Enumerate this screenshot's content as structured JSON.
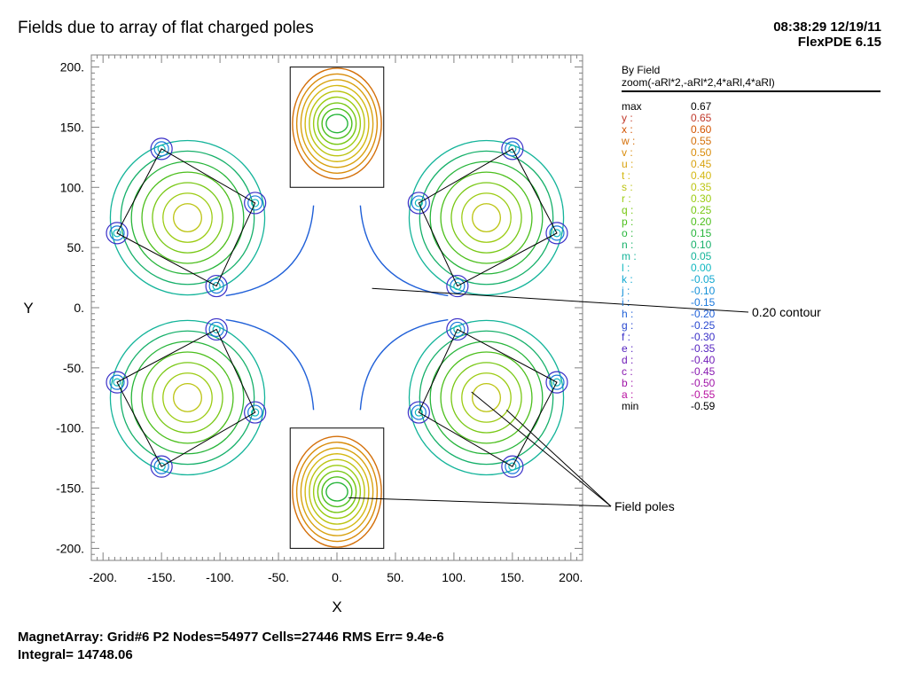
{
  "header": {
    "title": "Fields due to array of flat charged poles",
    "timestamp": "08:38:29 12/19/11",
    "software": "FlexPDE 6.15"
  },
  "chart_data": {
    "type": "contour",
    "xlabel": "X",
    "ylabel": "Y",
    "xlim": [
      -210,
      210
    ],
    "ylim": [
      -210,
      210
    ],
    "x_ticks": [
      {
        "value": -200,
        "label": "-200."
      },
      {
        "value": -150,
        "label": "-150."
      },
      {
        "value": -100,
        "label": "-100."
      },
      {
        "value": -50,
        "label": "-50."
      },
      {
        "value": 0,
        "label": "0."
      },
      {
        "value": 50,
        "label": "50."
      },
      {
        "value": 100,
        "label": "100."
      },
      {
        "value": 150,
        "label": "150."
      },
      {
        "value": 200,
        "label": "200."
      }
    ],
    "y_ticks": [
      {
        "value": 200,
        "label": "200."
      },
      {
        "value": 150,
        "label": "150."
      },
      {
        "value": 100,
        "label": "100."
      },
      {
        "value": 50,
        "label": "50."
      },
      {
        "value": 0,
        "label": "0."
      },
      {
        "value": -50,
        "label": "-50."
      },
      {
        "value": -100,
        "label": "-100."
      },
      {
        "value": -150,
        "label": "-150."
      },
      {
        "value": -200,
        "label": "-200."
      }
    ],
    "poles": [
      [
        [
          -40,
          200
        ],
        [
          40,
          200
        ],
        [
          40,
          100
        ],
        [
          -40,
          100
        ]
      ],
      [
        [
          -40,
          -100
        ],
        [
          40,
          -100
        ],
        [
          40,
          -200
        ],
        [
          -40,
          -200
        ]
      ],
      [
        [
          -150,
          132
        ],
        [
          -70,
          87
        ],
        [
          -103,
          18
        ],
        [
          -188,
          62
        ]
      ],
      [
        [
          150,
          132
        ],
        [
          70,
          87
        ],
        [
          103,
          18
        ],
        [
          188,
          62
        ]
      ],
      [
        [
          -150,
          -132
        ],
        [
          -70,
          -87
        ],
        [
          -103,
          -18
        ],
        [
          -188,
          -62
        ]
      ],
      [
        [
          150,
          -132
        ],
        [
          70,
          -87
        ],
        [
          103,
          -18
        ],
        [
          188,
          -62
        ]
      ]
    ],
    "annotations": [
      {
        "text": "0.20 contour",
        "points_to": [
          [
            30,
            16
          ]
        ]
      },
      {
        "text": "Field poles",
        "points_to": [
          [
            115,
            -70
          ],
          [
            145,
            -85
          ],
          [
            10,
            -158
          ]
        ]
      }
    ],
    "legend": {
      "title": "By Field",
      "subtitle": "zoom(-aRl*2,-aRl*2,4*aRl,4*aRl)",
      "max": {
        "label": "max",
        "value": "0.67"
      },
      "min": {
        "label": "min",
        "value": "-0.59"
      },
      "levels": [
        {
          "label": "y :",
          "value": "0.65",
          "color": "#c0392b"
        },
        {
          "label": "x :",
          "value": "0.60",
          "color": "#d35400"
        },
        {
          "label": "w :",
          "value": "0.55",
          "color": "#d4700a"
        },
        {
          "label": "v :",
          "value": "0.50",
          "color": "#d98c0a"
        },
        {
          "label": "u :",
          "value": "0.45",
          "color": "#d8a20f"
        },
        {
          "label": "t :",
          "value": "0.40",
          "color": "#d4b812"
        },
        {
          "label": "s :",
          "value": "0.35",
          "color": "#bcc412"
        },
        {
          "label": "r :",
          "value": "0.30",
          "color": "#9ccc12"
        },
        {
          "label": "q :",
          "value": "0.25",
          "color": "#78c814"
        },
        {
          "label": "p :",
          "value": "0.20",
          "color": "#4cbf1c"
        },
        {
          "label": "o :",
          "value": "0.15",
          "color": "#27b53a"
        },
        {
          "label": "n :",
          "value": "0.10",
          "color": "#16b06a"
        },
        {
          "label": "m :",
          "value": "0.05",
          "color": "#14b49a"
        },
        {
          "label": "l :",
          "value": "0.00",
          "color": "#10b8c0"
        },
        {
          "label": "k :",
          "value": "-0.05",
          "color": "#10a8d0"
        },
        {
          "label": "j :",
          "value": "-0.10",
          "color": "#1490d8"
        },
        {
          "label": "i :",
          "value": "-0.15",
          "color": "#1a78dc"
        },
        {
          "label": "h :",
          "value": "-0.20",
          "color": "#2060d8"
        },
        {
          "label": "g :",
          "value": "-0.25",
          "color": "#2a48d0"
        },
        {
          "label": "f :",
          "value": "-0.30",
          "color": "#3a30c8"
        },
        {
          "label": "e :",
          "value": "-0.35",
          "color": "#5524c0"
        },
        {
          "label": "d :",
          "value": "-0.40",
          "color": "#701cb8"
        },
        {
          "label": "c :",
          "value": "-0.45",
          "color": "#8818b0"
        },
        {
          "label": "b :",
          "value": "-0.50",
          "color": "#a014a8"
        },
        {
          "label": "a :",
          "value": "-0.55",
          "color": "#b810a0"
        }
      ]
    }
  },
  "footer": {
    "line1": "MagnetArray:  Grid#6  P2  Nodes=54977 Cells=27446 RMS Err= 9.4e-6",
    "line2": "Integral=  14748.06"
  }
}
